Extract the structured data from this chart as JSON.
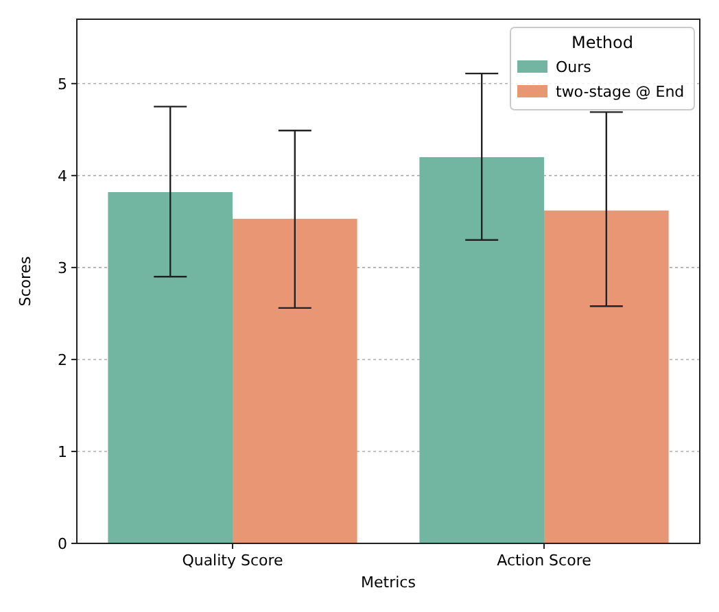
{
  "chart_data": {
    "type": "bar",
    "xlabel": "Metrics",
    "ylabel": "Scores",
    "legend_title": "Method",
    "categories": [
      "Quality Score",
      "Action Score"
    ],
    "series": [
      {
        "name": "Ours",
        "color": "#72b6a1",
        "values": [
          3.82,
          4.2
        ],
        "errors": [
          [
            2.9,
            4.75
          ],
          [
            3.3,
            5.11
          ]
        ]
      },
      {
        "name": "two-stage @ End",
        "color": "#e99675",
        "values": [
          3.53,
          3.62
        ],
        "errors": [
          [
            2.56,
            4.49
          ],
          [
            2.58,
            4.69
          ]
        ]
      }
    ],
    "ylim": [
      0,
      5.7
    ],
    "yticks": [
      0,
      1,
      2,
      3,
      4,
      5
    ],
    "grid": "y",
    "legend": "top right"
  }
}
